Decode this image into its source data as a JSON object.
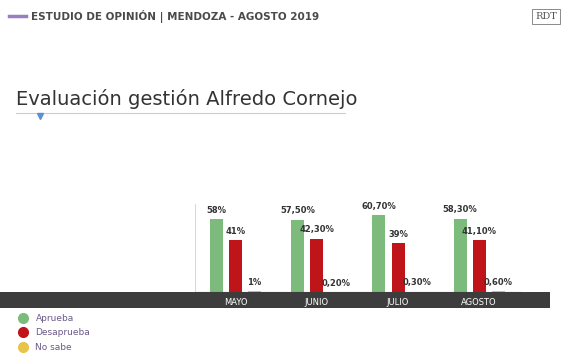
{
  "header": {
    "title": "ESTUDIO DE OPINIÓN | MENDOZA - AGOSTO 2019",
    "logo": "RDT"
  },
  "chart_data": {
    "type": "bar",
    "title": "Evaluación gestión Alfredo Cornejo",
    "categories": [
      "MAYO",
      "JUNIO",
      "JULIO",
      "AGOSTO"
    ],
    "series": [
      {
        "name": "Aprueba",
        "color": "#7dbb7d",
        "values": [
          58,
          57.5,
          60.7,
          58.3
        ],
        "value_labels": [
          "58%",
          "57,50%",
          "60,70%",
          "58,30%"
        ]
      },
      {
        "name": "Desaprueba",
        "color": "#c0141b",
        "values": [
          41,
          42.3,
          39,
          41.1
        ],
        "value_labels": [
          "41%",
          "42,30%",
          "39%",
          "41,10%"
        ]
      },
      {
        "name": "No sabe",
        "color": "#e8c44a",
        "values": [
          1,
          0.2,
          0.3,
          0.6
        ],
        "value_labels": [
          "1%",
          "0,20%",
          "0,30%",
          "0,60%"
        ]
      }
    ],
    "ylim": [
      0,
      70
    ],
    "tick_labels": "x",
    "data_labels": true,
    "grid": false,
    "legend": "lower left"
  }
}
